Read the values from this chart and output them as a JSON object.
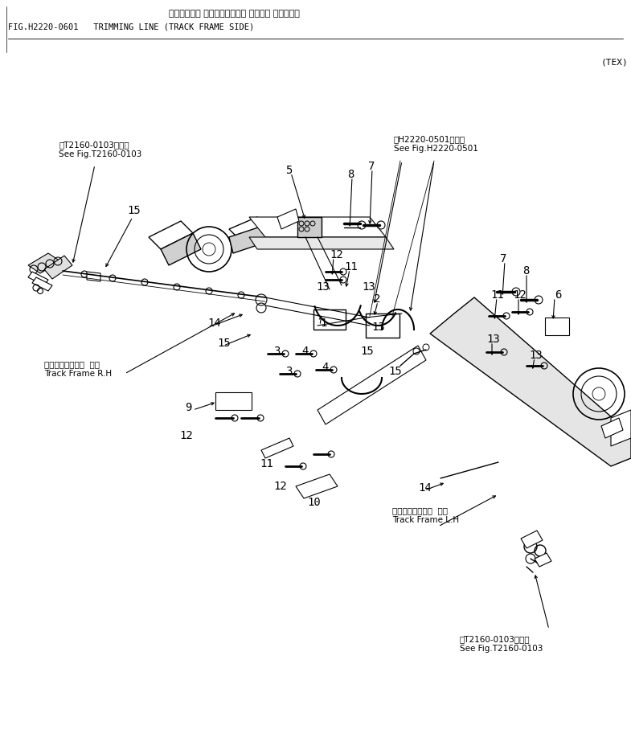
{
  "title_jp": "トリミング・ ライン（トラック フレーム サイド・）",
  "title_en": "FIG.H2220-0601   TRIMMING LINE (TRACK FRAME SIDE)",
  "tex_label": "(TEX)",
  "bg_color": "#ffffff",
  "fig_width": 7.85,
  "fig_height": 9.38,
  "dpi": 100,
  "ref_top_left": "第T2160-0103図参照\nSee Fig.T2160-0103",
  "ref_top_right": "第H2220-0501図参照\nSee Fig.H2220-0501",
  "ref_bot_right": "第T2160-0103図参照\nSee Fig.T2160-0103",
  "label_rh": "トラックフレーム  右側\nTrack Frame R.H",
  "label_lh": "トラックフレーム  左側\nTrack Frame L.H"
}
